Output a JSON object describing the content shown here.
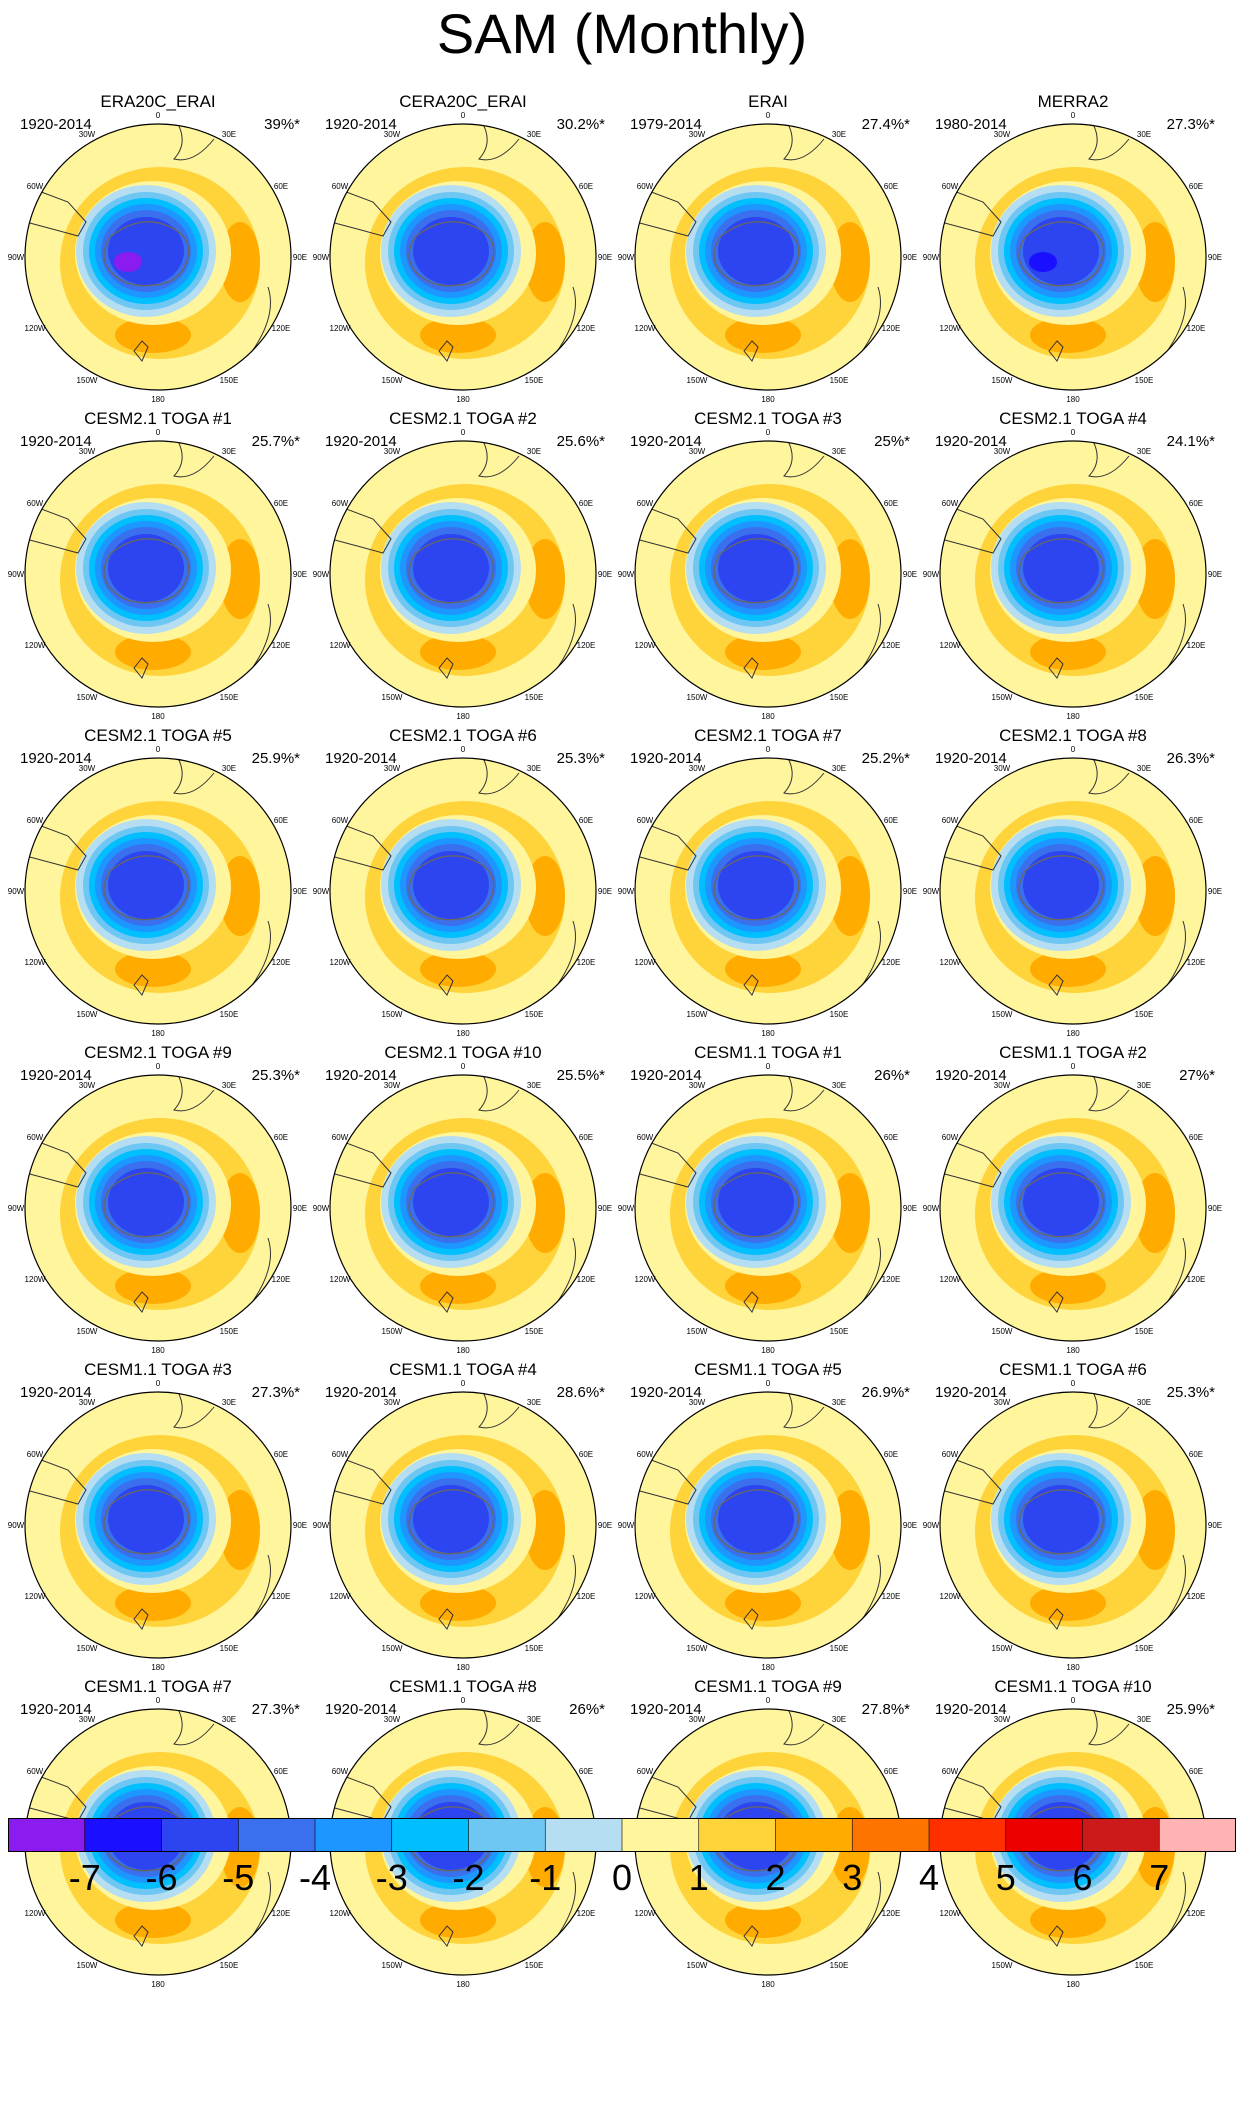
{
  "title": "SAM (Monthly)",
  "panels": [
    {
      "title": "ERA20C_ERAI",
      "period": "1920-2014",
      "variance": "39%*"
    },
    {
      "title": "CERA20C_ERAI",
      "period": "1920-2014",
      "variance": "30.2%*"
    },
    {
      "title": "ERAI",
      "period": "1979-2014",
      "variance": "27.4%*"
    },
    {
      "title": "MERRA2",
      "period": "1980-2014",
      "variance": "27.3%*"
    },
    {
      "title": "CESM2.1 TOGA #1",
      "period": "1920-2014",
      "variance": "25.7%*"
    },
    {
      "title": "CESM2.1 TOGA #2",
      "period": "1920-2014",
      "variance": "25.6%*"
    },
    {
      "title": "CESM2.1 TOGA #3",
      "period": "1920-2014",
      "variance": "25%*"
    },
    {
      "title": "CESM2.1 TOGA #4",
      "period": "1920-2014",
      "variance": "24.1%*"
    },
    {
      "title": "CESM2.1 TOGA #5",
      "period": "1920-2014",
      "variance": "25.9%*"
    },
    {
      "title": "CESM2.1 TOGA #6",
      "period": "1920-2014",
      "variance": "25.3%*"
    },
    {
      "title": "CESM2.1 TOGA #7",
      "period": "1920-2014",
      "variance": "25.2%*"
    },
    {
      "title": "CESM2.1 TOGA #8",
      "period": "1920-2014",
      "variance": "26.3%*"
    },
    {
      "title": "CESM2.1 TOGA #9",
      "period": "1920-2014",
      "variance": "25.3%*"
    },
    {
      "title": "CESM2.1 TOGA #10",
      "period": "1920-2014",
      "variance": "25.5%*"
    },
    {
      "title": "CESM1.1 TOGA #1",
      "period": "1920-2014",
      "variance": "26%*"
    },
    {
      "title": "CESM1.1 TOGA #2",
      "period": "1920-2014",
      "variance": "27%*"
    },
    {
      "title": "CESM1.1 TOGA #3",
      "period": "1920-2014",
      "variance": "27.3%*"
    },
    {
      "title": "CESM1.1 TOGA #4",
      "period": "1920-2014",
      "variance": "28.6%*"
    },
    {
      "title": "CESM1.1 TOGA #5",
      "period": "1920-2014",
      "variance": "26.9%*"
    },
    {
      "title": "CESM1.1 TOGA #6",
      "period": "1920-2014",
      "variance": "25.3%*"
    },
    {
      "title": "CESM1.1 TOGA #7",
      "period": "1920-2014",
      "variance": "27.3%*"
    },
    {
      "title": "CESM1.1 TOGA #8",
      "period": "1920-2014",
      "variance": "26%*"
    },
    {
      "title": "CESM1.1 TOGA #9",
      "period": "1920-2014",
      "variance": "27.8%*"
    },
    {
      "title": "CESM1.1 TOGA #10",
      "period": "1920-2014",
      "variance": "25.9%*"
    }
  ],
  "longitude_labels": [
    "0",
    "30E",
    "60E",
    "90E",
    "120E",
    "150E",
    "180",
    "150W",
    "120W",
    "90W",
    "60W",
    "30W"
  ],
  "colorbar": {
    "ticks": [
      "-7",
      "-6",
      "-5",
      "-4",
      "-3",
      "-2",
      "-1",
      "0",
      "1",
      "2",
      "3",
      "4",
      "5",
      "6",
      "7"
    ],
    "colors": [
      "#8a1cf0",
      "#1a10ff",
      "#2c45f0",
      "#3a70ee",
      "#1e96ff",
      "#00bfff",
      "#6ec6f2",
      "#b5def2",
      "#fff59d",
      "#ffd43b",
      "#ffab00",
      "#ff7400",
      "#ff3000",
      "#ed0000",
      "#cc1a1a",
      "#ffb3b3"
    ]
  }
}
